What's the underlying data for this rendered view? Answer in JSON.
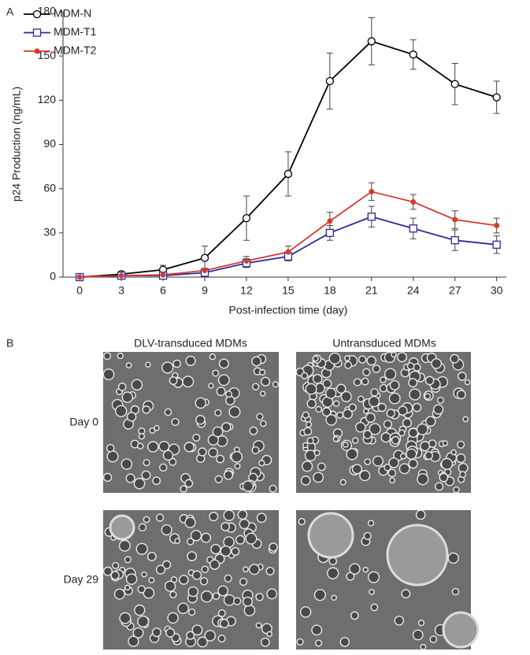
{
  "panel_labels": [
    "A",
    "B"
  ],
  "chart_data": {
    "type": "line",
    "x_label": "Post-infection time (day)",
    "y_label": "p24 Production (ng/mL)",
    "x": [
      0,
      3,
      6,
      9,
      12,
      15,
      18,
      21,
      24,
      27,
      30
    ],
    "xlim": [
      -1.2,
      30.7
    ],
    "xticks": [
      0,
      3,
      6,
      9,
      12,
      15,
      18,
      21,
      24,
      27,
      30
    ],
    "ylim": [
      0,
      180
    ],
    "yticks": [
      0,
      30,
      60,
      90,
      120,
      150,
      180
    ],
    "legend": "upper left",
    "series": [
      {
        "name": "MDM-N",
        "color": "#000000",
        "marker": "open-circle",
        "values": [
          0,
          2,
          5,
          13,
          40,
          70,
          133,
          160,
          151,
          131,
          122
        ],
        "errors": [
          0.5,
          1,
          3,
          8,
          15,
          15,
          19,
          16,
          10,
          14,
          11
        ]
      },
      {
        "name": "MDM-T1",
        "color": "#2b2b9a",
        "marker": "open-square",
        "values": [
          0,
          1,
          1,
          3,
          9.5,
          14,
          30,
          41,
          33,
          25,
          22
        ],
        "errors": [
          0,
          0.5,
          0.5,
          1,
          3,
          3,
          5,
          7,
          7,
          7,
          6
        ]
      },
      {
        "name": "MDM-T2",
        "color": "#d63a2f",
        "marker": "filled-circle",
        "values": [
          0,
          1,
          1.5,
          4.5,
          11,
          17,
          38,
          58,
          51,
          39,
          35
        ],
        "errors": [
          0,
          0.5,
          0.5,
          1.5,
          3,
          4,
          6,
          6,
          5,
          6,
          5
        ]
      }
    ]
  },
  "panel_b": {
    "columns": [
      "DLV-transduced MDMs",
      "Untransduced MDMs"
    ],
    "rows": [
      "Day 0",
      "Day 29"
    ]
  }
}
